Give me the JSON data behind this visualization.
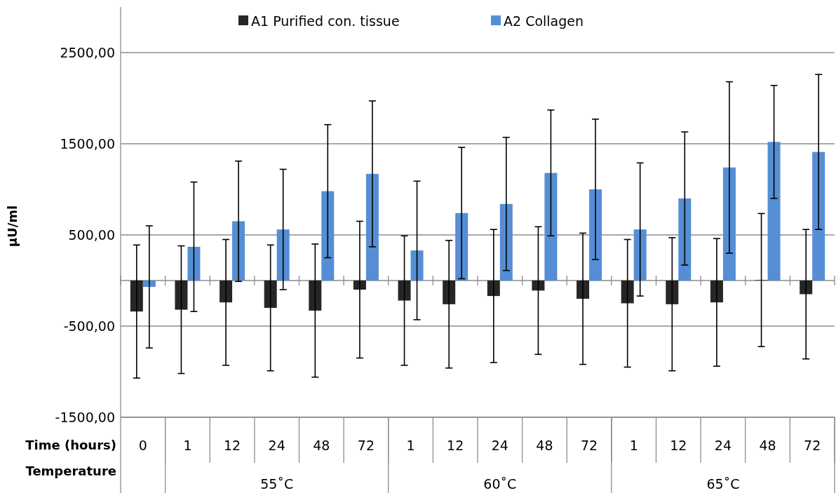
{
  "chart_data": {
    "type": "bar",
    "ylabel": "µU/ml",
    "categories": [
      "0",
      "1",
      "12",
      "24",
      "48",
      "72",
      "1",
      "12",
      "24",
      "48",
      "72",
      "1",
      "12",
      "24",
      "48",
      "72"
    ],
    "annotations": [
      "Time (hours)",
      "Temperature",
      "55˚C",
      "60˚C",
      "65˚C"
    ],
    "series": [
      {
        "name": "A1 Purified con. tissue",
        "color": "#262626",
        "values": [
          -340,
          -320,
          -240,
          -300,
          -330,
          -100,
          -220,
          -260,
          -170,
          -110,
          -200,
          -250,
          -260,
          -240,
          5,
          -150
        ],
        "errors": [
          730,
          700,
          690,
          690,
          730,
          750,
          710,
          700,
          730,
          700,
          720,
          700,
          730,
          700,
          730,
          710
        ]
      },
      {
        "name": "A2 Collagen",
        "color": "#558ed5",
        "values": [
          -70,
          370,
          650,
          560,
          980,
          1170,
          330,
          740,
          840,
          1180,
          1000,
          560,
          900,
          1240,
          1520,
          1410
        ],
        "errors": [
          670,
          710,
          660,
          660,
          730,
          800,
          760,
          720,
          730,
          690,
          770,
          730,
          730,
          940,
          620,
          850
        ]
      }
    ],
    "ylim": [
      -1500,
      3000
    ],
    "yticks": [
      {
        "value": -1500,
        "label": "-1500,00"
      },
      {
        "value": -500,
        "label": "-500,00"
      },
      {
        "value": 500,
        "label": "500,00"
      },
      {
        "value": 1500,
        "label": "1500,00"
      },
      {
        "value": 2500,
        "label": "2500,00"
      }
    ],
    "grid": "y",
    "legend": "top"
  }
}
